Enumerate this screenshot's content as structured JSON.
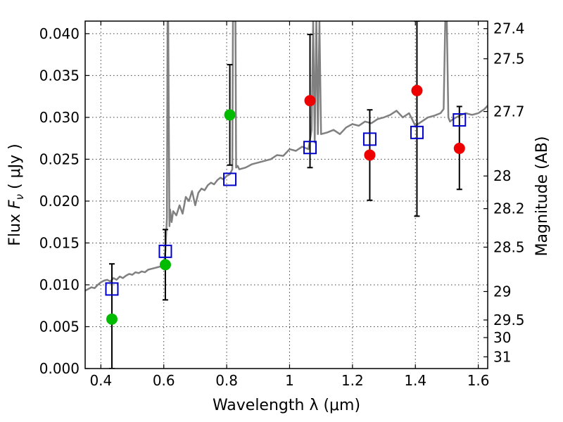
{
  "chart_data": {
    "type": "scatter",
    "xlabel": "Wavelength  λ (μm)",
    "ylabel_text": "Flux ",
    "ylabel_symbol": "F",
    "ylabel_sub": "ν",
    "ylabel_units": "  ( μJy )",
    "y2label": "Magnitude (AB)",
    "xlim": [
      0.35,
      1.63
    ],
    "ylim": [
      0.0,
      0.0415
    ],
    "grid": true,
    "x_ticks": [
      {
        "value": 0.4,
        "label": "0.4"
      },
      {
        "value": 0.6,
        "label": "0.6"
      },
      {
        "value": 0.8,
        "label": "0.8"
      },
      {
        "value": 1.0,
        "label": "1"
      },
      {
        "value": 1.2,
        "label": "1.2"
      },
      {
        "value": 1.4,
        "label": "1.4"
      },
      {
        "value": 1.6,
        "label": "1.6"
      }
    ],
    "y_ticks": [
      {
        "value": 0.0,
        "label": "0.000"
      },
      {
        "value": 0.005,
        "label": "0.005"
      },
      {
        "value": 0.01,
        "label": "0.010"
      },
      {
        "value": 0.015,
        "label": "0.015"
      },
      {
        "value": 0.02,
        "label": "0.020"
      },
      {
        "value": 0.025,
        "label": "0.025"
      },
      {
        "value": 0.03,
        "label": "0.030"
      },
      {
        "value": 0.035,
        "label": "0.035"
      },
      {
        "value": 0.04,
        "label": "0.040"
      }
    ],
    "y2_ticks": [
      {
        "flux": 0.0406,
        "label": "27.4"
      },
      {
        "flux": 0.037,
        "label": "27.5"
      },
      {
        "flux": 0.0307,
        "label": "27.7"
      },
      {
        "flux": 0.023,
        "label": "28"
      },
      {
        "flux": 0.0191,
        "label": "28.2"
      },
      {
        "flux": 0.0145,
        "label": "28.5"
      },
      {
        "flux": 0.0092,
        "label": "29"
      },
      {
        "flux": 0.0058,
        "label": "29.5"
      },
      {
        "flux": 0.0037,
        "label": "30"
      },
      {
        "flux": 0.0014,
        "label": "31"
      }
    ],
    "model_spectrum": {
      "color": "#808080",
      "x": [
        0.35,
        0.36,
        0.37,
        0.38,
        0.39,
        0.4,
        0.41,
        0.42,
        0.43,
        0.44,
        0.45,
        0.46,
        0.47,
        0.48,
        0.49,
        0.5,
        0.51,
        0.52,
        0.53,
        0.54,
        0.55,
        0.56,
        0.57,
        0.58,
        0.59,
        0.6,
        0.605,
        0.61,
        0.612,
        0.614,
        0.618,
        0.62,
        0.625,
        0.63,
        0.64,
        0.65,
        0.66,
        0.67,
        0.68,
        0.69,
        0.7,
        0.71,
        0.72,
        0.73,
        0.74,
        0.75,
        0.76,
        0.77,
        0.78,
        0.79,
        0.8,
        0.81,
        0.818,
        0.82,
        0.822,
        0.828,
        0.83,
        0.835,
        0.84,
        0.86,
        0.88,
        0.9,
        0.92,
        0.94,
        0.96,
        0.98,
        1.0,
        1.02,
        1.04,
        1.06,
        1.07,
        1.075,
        1.08,
        1.085,
        1.09,
        1.095,
        1.1,
        1.12,
        1.14,
        1.16,
        1.18,
        1.2,
        1.22,
        1.24,
        1.26,
        1.28,
        1.3,
        1.32,
        1.34,
        1.36,
        1.38,
        1.4,
        1.42,
        1.44,
        1.46,
        1.48,
        1.49,
        1.495,
        1.5,
        1.505,
        1.51,
        1.52,
        1.54,
        1.56,
        1.58,
        1.6,
        1.62,
        1.63
      ],
      "y": [
        0.0093,
        0.0095,
        0.0097,
        0.0096,
        0.01,
        0.0103,
        0.0105,
        0.0106,
        0.0104,
        0.0108,
        0.0106,
        0.011,
        0.0108,
        0.0111,
        0.0113,
        0.0112,
        0.0115,
        0.0114,
        0.0116,
        0.0115,
        0.0118,
        0.0119,
        0.012,
        0.0121,
        0.0122,
        0.0123,
        0.014,
        0.018,
        0.0415,
        0.0415,
        0.017,
        0.019,
        0.0175,
        0.0188,
        0.0183,
        0.0195,
        0.0185,
        0.0205,
        0.02,
        0.0212,
        0.0195,
        0.021,
        0.0215,
        0.0213,
        0.0219,
        0.0222,
        0.022,
        0.0225,
        0.0228,
        0.0226,
        0.023,
        0.0232,
        0.0238,
        0.0415,
        0.0415,
        0.0415,
        0.024,
        0.0242,
        0.0238,
        0.024,
        0.0244,
        0.0246,
        0.0248,
        0.025,
        0.0255,
        0.0254,
        0.0262,
        0.026,
        0.0265,
        0.0262,
        0.0285,
        0.0415,
        0.027,
        0.0415,
        0.028,
        0.0415,
        0.028,
        0.0282,
        0.0285,
        0.028,
        0.0288,
        0.0292,
        0.029,
        0.0295,
        0.0293,
        0.0298,
        0.03,
        0.0303,
        0.0308,
        0.03,
        0.0305,
        0.029,
        0.0295,
        0.03,
        0.0302,
        0.0305,
        0.031,
        0.0415,
        0.0415,
        0.03,
        0.0295,
        0.0298,
        0.0302,
        0.0305,
        0.0303,
        0.0305,
        0.031,
        0.0314
      ],
      "width": 2.5
    },
    "model_band_fluxes": {
      "marker": "open-square",
      "color": "#0000cc",
      "x": [
        0.435,
        0.605,
        0.81,
        1.065,
        1.255,
        1.405,
        1.54
      ],
      "y": [
        0.0095,
        0.014,
        0.0226,
        0.0264,
        0.0274,
        0.0282,
        0.0297
      ]
    },
    "observed_hst": {
      "marker": "filled-circle",
      "color": "#00bb00",
      "x": [
        0.435,
        0.605,
        0.81
      ],
      "y": [
        0.0059,
        0.0124,
        0.0303
      ],
      "err_low": [
        0.0059,
        0.0042,
        0.006
      ],
      "err_high": [
        0.0066,
        0.0042,
        0.006
      ]
    },
    "observed_ir": {
      "marker": "filled-circle",
      "color": "#ee0000",
      "x": [
        1.065,
        1.255,
        1.405,
        1.54
      ],
      "y": [
        0.032,
        0.0255,
        0.0332,
        0.0263
      ],
      "err_low": [
        0.008,
        0.0054,
        0.015,
        0.0049
      ],
      "err_high": [
        0.0079,
        0.0054,
        0.0083,
        0.005
      ]
    }
  }
}
